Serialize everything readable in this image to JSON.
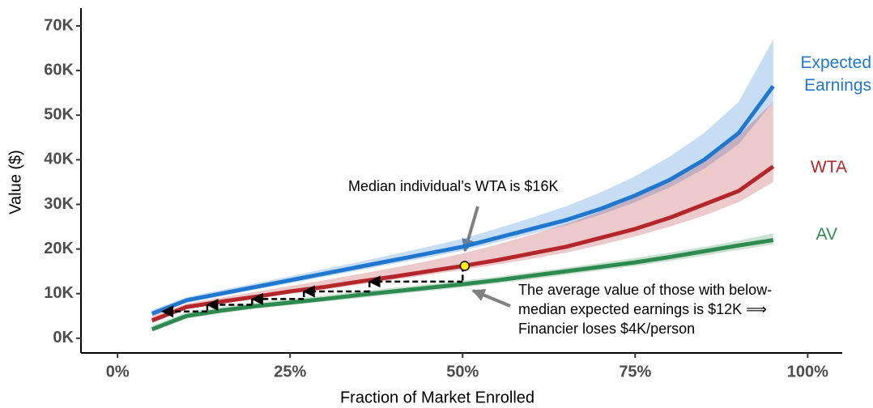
{
  "chart_data": {
    "type": "line",
    "xlabel": "Fraction of Market Enrolled",
    "ylabel": "Value ($)",
    "xlim": [
      -5.3,
      105
    ],
    "ylim": [
      -3300,
      74000
    ],
    "xticks": [
      {
        "value": 0,
        "label": "0%"
      },
      {
        "value": 25,
        "label": "25%"
      },
      {
        "value": 50,
        "label": "50%"
      },
      {
        "value": 75,
        "label": "75%"
      },
      {
        "value": 100,
        "label": "100%"
      }
    ],
    "yticks": [
      {
        "value": 0,
        "label": "0K"
      },
      {
        "value": 10000,
        "label": "10K"
      },
      {
        "value": 20000,
        "label": "20K"
      },
      {
        "value": 30000,
        "label": "30K"
      },
      {
        "value": 40000,
        "label": "40K"
      },
      {
        "value": 50000,
        "label": "50K"
      },
      {
        "value": 60000,
        "label": "60K"
      },
      {
        "value": 70000,
        "label": "70K"
      }
    ],
    "x": [
      5,
      10,
      15,
      20,
      25,
      30,
      35,
      40,
      45,
      50,
      55,
      60,
      65,
      70,
      75,
      80,
      85,
      90,
      95
    ],
    "series": [
      {
        "name": "Expected Earnings",
        "color": "#1f77d0",
        "values": [
          5500,
          8500,
          10000,
          11500,
          13000,
          14500,
          16000,
          17500,
          19000,
          20500,
          22500,
          24500,
          26500,
          29000,
          32000,
          35500,
          40000,
          46000,
          56500
        ],
        "band_lower": [
          5000,
          8000,
          9400,
          10900,
          12300,
          13800,
          15200,
          16700,
          18100,
          19600,
          21500,
          23400,
          25300,
          27700,
          30500,
          33800,
          38000,
          43500,
          53000
        ],
        "band_upper": [
          6300,
          9200,
          10800,
          12300,
          13900,
          15500,
          17100,
          18800,
          20500,
          22300,
          24600,
          27000,
          29600,
          32700,
          36300,
          40700,
          46000,
          53000,
          67000
        ]
      },
      {
        "name": "WTA",
        "color": "#b5262b",
        "values": [
          4000,
          7000,
          8200,
          9300,
          10500,
          11500,
          12700,
          13800,
          15000,
          16200,
          17500,
          19000,
          20500,
          22500,
          24500,
          27000,
          30000,
          33000,
          38500
        ],
        "band_lower": [
          3400,
          6500,
          7700,
          8800,
          9900,
          10900,
          12000,
          13100,
          14200,
          15300,
          16500,
          17800,
          19200,
          20900,
          22800,
          25000,
          27500,
          30500,
          35000
        ],
        "band_upper": [
          5000,
          7800,
          9100,
          10400,
          11700,
          13000,
          14400,
          15800,
          17300,
          19000,
          21000,
          23200,
          25600,
          28400,
          31600,
          35500,
          40000,
          45500,
          53000
        ]
      },
      {
        "name": "AV",
        "color": "#2e8b50",
        "values": [
          2000,
          5000,
          6200,
          7200,
          8000,
          8800,
          9700,
          10500,
          11300,
          12100,
          13000,
          14000,
          15000,
          16000,
          17000,
          18200,
          19500,
          20800,
          22000
        ],
        "band_lower": [
          1500,
          4400,
          5600,
          6600,
          7400,
          8200,
          9000,
          9800,
          10600,
          11400,
          12300,
          13200,
          14200,
          15200,
          16200,
          17300,
          18500,
          19800,
          21000
        ],
        "band_upper": [
          2800,
          5800,
          7000,
          8000,
          8800,
          9600,
          10500,
          11300,
          12100,
          12900,
          13800,
          14800,
          15800,
          16900,
          18000,
          19200,
          20500,
          21900,
          23500
        ]
      }
    ],
    "median_point": {
      "x": 50.3,
      "y": 16200,
      "color": "#ffee00"
    },
    "step_path": {
      "x": [
        50,
        50,
        36.5,
        36.5,
        27,
        27,
        19.5,
        19.5,
        13,
        13,
        6.5
      ],
      "y": [
        16200,
        12700,
        12700,
        10500,
        10500,
        8800,
        8800,
        7500,
        7500,
        6000,
        6000
      ]
    },
    "annotations": [
      "Median individual’s WTA is $16K",
      "The average value of those with below-median expected earnings is $12K ⟹ Financier loses $4K/person"
    ]
  }
}
